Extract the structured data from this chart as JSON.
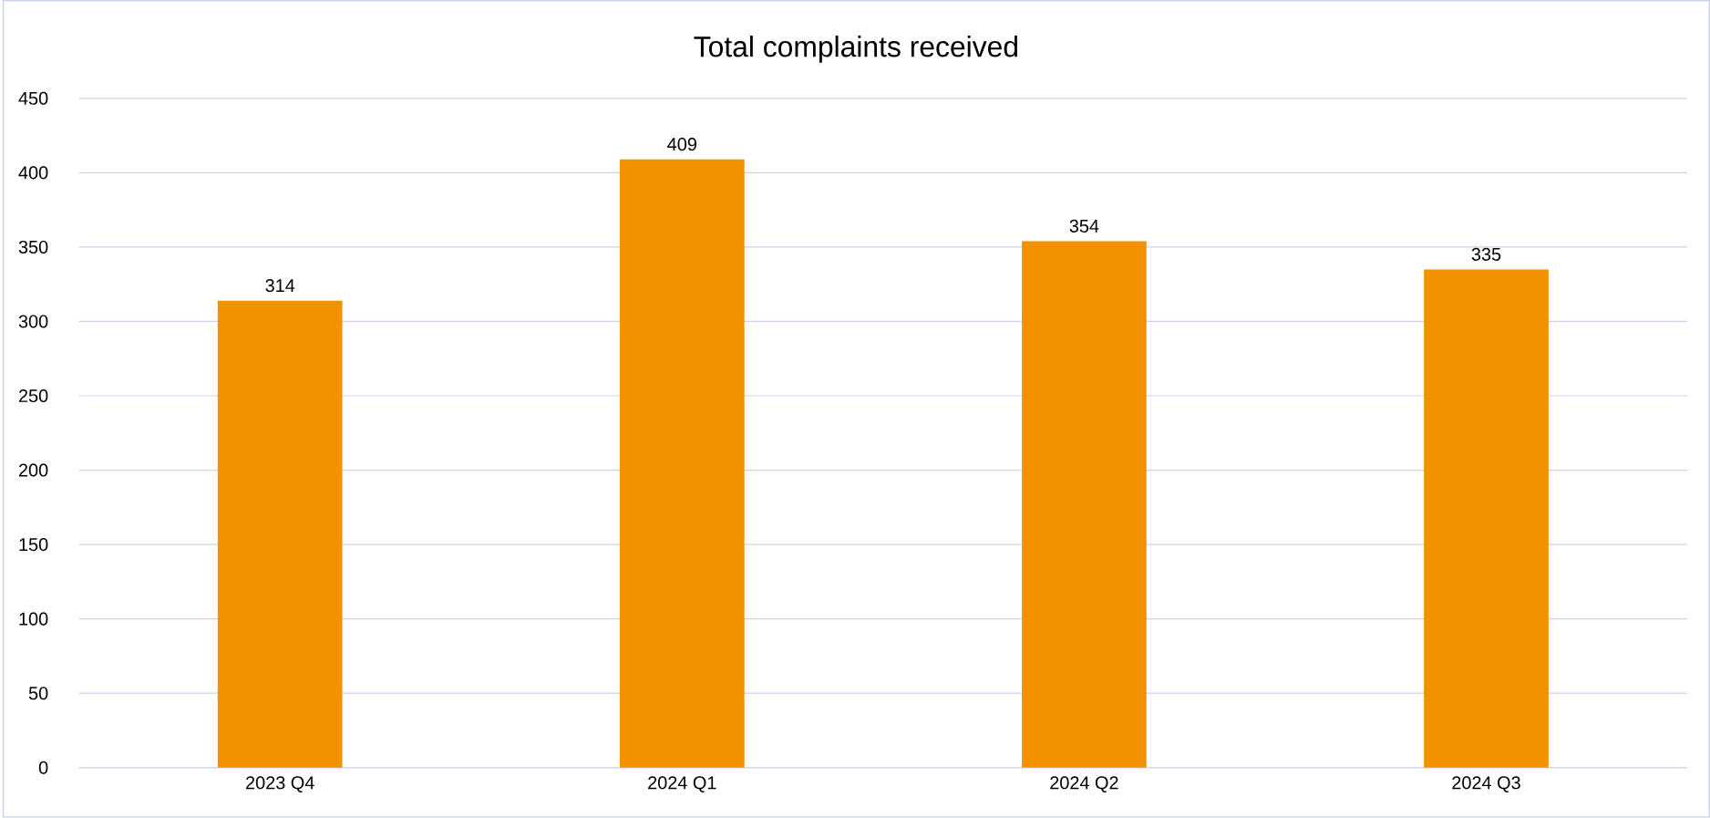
{
  "chart_data": {
    "type": "bar",
    "title": "Total complaints received",
    "categories": [
      "2023 Q4",
      "2024 Q1",
      "2024 Q2",
      "2024 Q3"
    ],
    "values": [
      314,
      409,
      354,
      335
    ],
    "color": "#f29200",
    "ylim": [
      0,
      450
    ],
    "yticks": [
      0,
      50,
      100,
      150,
      200,
      250,
      300,
      350,
      400,
      450
    ],
    "grid": "y",
    "data_labels": true
  }
}
